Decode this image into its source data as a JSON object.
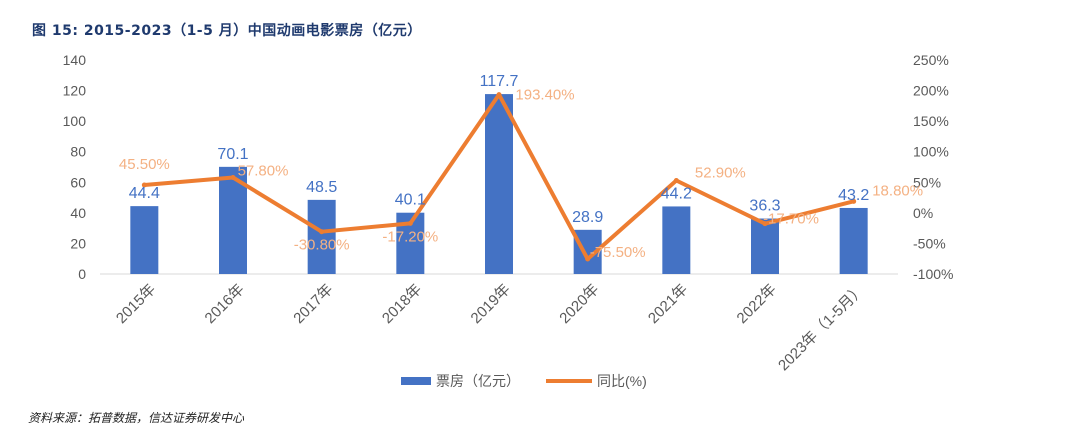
{
  "figure_title": "图 15:  2015-2023（1-5 月）中国动画电影票房（亿元）",
  "source_note": "资料来源：拓普数据，信达证券研发中心",
  "colors": {
    "bar": "#4472c4",
    "line": "#ed7d31",
    "bar_label": "#4472c4",
    "line_label": "#f4b183",
    "axis_text": "#595959",
    "axis_line": "#d9d9d9",
    "title": "#1f3a6e"
  },
  "chart_data": {
    "type": "bar+line",
    "categories": [
      "2015年",
      "2016年",
      "2017年",
      "2018年",
      "2019年",
      "2020年",
      "2021年",
      "2022年",
      "2023年（1-5月）"
    ],
    "series": [
      {
        "name": "票房（亿元）",
        "type": "bar",
        "axis": "left",
        "values": [
          44.4,
          70.1,
          48.5,
          40.1,
          117.7,
          28.9,
          44.2,
          36.3,
          43.2
        ],
        "labels": [
          "44.4",
          "70.1",
          "48.5",
          "40.1",
          "117.7",
          "28.9",
          "44.2",
          "36.3",
          "43.2"
        ]
      },
      {
        "name": "同比(%)",
        "type": "line",
        "axis": "right",
        "values": [
          45.5,
          57.8,
          -30.8,
          -17.2,
          193.4,
          -75.5,
          52.9,
          -17.7,
          18.8
        ],
        "labels": [
          "45.50%",
          "57.80%",
          "-30.80%",
          "-17.20%",
          "193.40%",
          "-75.50%",
          "52.90%",
          "-17.70%",
          "18.80%"
        ]
      }
    ],
    "y_left": {
      "min": 0,
      "max": 140,
      "ticks": [
        0,
        20,
        40,
        60,
        80,
        100,
        120,
        140
      ],
      "tick_labels": [
        "0",
        "20",
        "40",
        "60",
        "80",
        "100",
        "120",
        "140"
      ]
    },
    "y_right": {
      "min": -100,
      "max": 250,
      "ticks": [
        -100,
        -50,
        0,
        50,
        100,
        150,
        200,
        250
      ],
      "tick_labels": [
        "-100%",
        "-50%",
        "0%",
        "50%",
        "100%",
        "150%",
        "200%",
        "250%"
      ]
    },
    "legend": {
      "position": "bottom",
      "items": [
        "票房（亿元）",
        "同比(%)"
      ]
    },
    "grid": false
  }
}
